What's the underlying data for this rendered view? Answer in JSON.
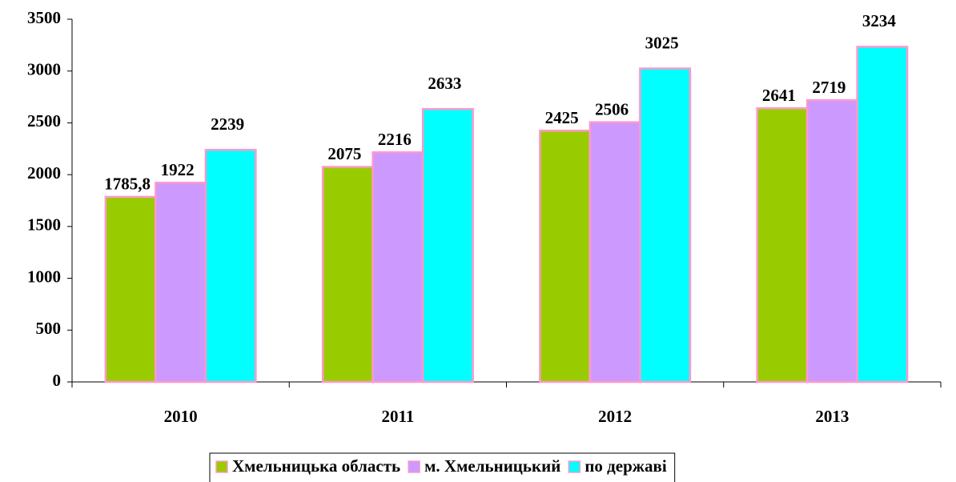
{
  "chart_data": {
    "type": "bar",
    "categories": [
      "2010",
      "2011",
      "2012",
      "2013"
    ],
    "series": [
      {
        "name": "Хмельницька область",
        "color": "#99cc00",
        "values": [
          1785.8,
          2075,
          2425,
          2641
        ],
        "value_labels": [
          "1785,8",
          "2075",
          "2425",
          "2641"
        ]
      },
      {
        "name": "м. Хмельницький",
        "color": "#cc99ff",
        "values": [
          1922,
          2216,
          2506,
          2719
        ]
      },
      {
        "name": "по державі",
        "color": "#00ffff",
        "values": [
          2239,
          2633,
          3025,
          3234
        ]
      }
    ],
    "ylim": [
      0,
      3500
    ],
    "yticks": [
      0,
      500,
      1000,
      1500,
      2000,
      2500,
      3000,
      3500
    ],
    "grid": false,
    "legend": "bottom",
    "bar_edge_color": "#ff99cc"
  }
}
